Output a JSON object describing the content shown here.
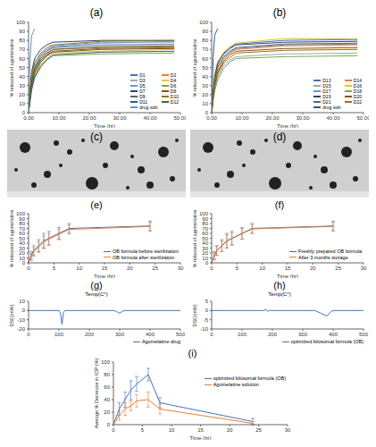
{
  "chart_data": [
    {
      "type": "line",
      "title": "(a)",
      "x_label": "Time (hr)",
      "y_label": "% released of agomelatine",
      "x": [
        0,
        0.5,
        1,
        2,
        4,
        6,
        8,
        24,
        48
      ],
      "xlim": [
        0,
        50
      ],
      "xticks": [
        {
          "value": 0,
          "label": "0.00"
        },
        {
          "value": 10,
          "label": "10.00"
        },
        {
          "value": 20,
          "label": "20.00"
        },
        {
          "value": 30,
          "label": "30.00"
        },
        {
          "value": 40,
          "label": "40.00"
        },
        {
          "value": 50,
          "label": "50.00"
        }
      ],
      "ylim": [
        0,
        100
      ],
      "yticks": [
        0,
        10,
        20,
        30,
        40,
        50,
        60,
        70,
        80,
        90,
        100
      ],
      "legend": "lower right",
      "series": [
        {
          "name": "D1",
          "color": "#4472c4",
          "values": [
            0,
            20,
            35,
            50,
            62,
            68,
            72,
            75,
            76
          ]
        },
        {
          "name": "D2",
          "color": "#ed7d31",
          "values": [
            0,
            15,
            28,
            45,
            58,
            65,
            70,
            72,
            73
          ]
        },
        {
          "name": "D3",
          "color": "#a5a5a5",
          "values": [
            0,
            25,
            40,
            55,
            65,
            70,
            74,
            78,
            78
          ]
        },
        {
          "name": "D4",
          "color": "#ffc000",
          "values": [
            0,
            18,
            30,
            42,
            55,
            62,
            66,
            68,
            70
          ]
        },
        {
          "name": "D5",
          "color": "#5b9bd5",
          "values": [
            0,
            22,
            38,
            52,
            63,
            69,
            73,
            77,
            79
          ]
        },
        {
          "name": "D6",
          "color": "#70ad47",
          "values": [
            0,
            12,
            25,
            38,
            50,
            58,
            63,
            65,
            66
          ]
        },
        {
          "name": "D7",
          "color": "#264478",
          "values": [
            0,
            28,
            45,
            60,
            70,
            75,
            78,
            80,
            80
          ]
        },
        {
          "name": "D8",
          "color": "#9e480e",
          "values": [
            0,
            16,
            30,
            44,
            56,
            63,
            67,
            70,
            71
          ]
        },
        {
          "name": "D9",
          "color": "#636363",
          "values": [
            0,
            20,
            33,
            47,
            58,
            64,
            68,
            71,
            72
          ]
        },
        {
          "name": "D10",
          "color": "#997300",
          "values": [
            0,
            24,
            40,
            55,
            66,
            72,
            75,
            79,
            80
          ]
        },
        {
          "name": "D11",
          "color": "#255e91",
          "values": [
            0,
            14,
            26,
            40,
            52,
            59,
            64,
            67,
            68
          ]
        },
        {
          "name": "D12",
          "color": "#43682b",
          "values": [
            0,
            19,
            34,
            49,
            60,
            66,
            70,
            73,
            74
          ]
        },
        {
          "name": "drug soln",
          "color": "#698ed0",
          "values": [
            0,
            60,
            85,
            93,
            null,
            null,
            null,
            null,
            null
          ]
        }
      ]
    },
    {
      "type": "line",
      "title": "(b)",
      "x_label": "Time (hr)",
      "y_label": "% released of agomelatine",
      "x": [
        0,
        0.5,
        1,
        2,
        4,
        6,
        8,
        24,
        48
      ],
      "xlim": [
        0,
        50
      ],
      "xticks": [
        {
          "value": 0,
          "label": "0.00"
        },
        {
          "value": 10,
          "label": "10.00"
        },
        {
          "value": 20,
          "label": "20.00"
        },
        {
          "value": 30,
          "label": "30.00"
        },
        {
          "value": 40,
          "label": "40.00"
        },
        {
          "value": 50,
          "label": "50.00"
        }
      ],
      "ylim": [
        0,
        100
      ],
      "yticks": [
        0,
        10,
        20,
        30,
        40,
        50,
        60,
        70,
        80,
        90,
        100
      ],
      "legend": "lower right",
      "series": [
        {
          "name": "D13",
          "color": "#4472c4",
          "values": [
            0,
            22,
            38,
            54,
            66,
            72,
            76,
            80,
            81
          ]
        },
        {
          "name": "D14",
          "color": "#ed7d31",
          "values": [
            0,
            18,
            32,
            47,
            59,
            66,
            70,
            74,
            75
          ]
        },
        {
          "name": "D15",
          "color": "#a5a5a5",
          "values": [
            0,
            15,
            27,
            40,
            52,
            58,
            62,
            65,
            66
          ]
        },
        {
          "name": "D16",
          "color": "#ffc000",
          "values": [
            0,
            26,
            42,
            57,
            67,
            73,
            77,
            82,
            82
          ]
        },
        {
          "name": "D17",
          "color": "#5b9bd5",
          "values": [
            0,
            20,
            35,
            50,
            61,
            67,
            71,
            75,
            76
          ]
        },
        {
          "name": "D18",
          "color": "#70ad47",
          "values": [
            0,
            13,
            24,
            37,
            49,
            56,
            60,
            62,
            63
          ]
        },
        {
          "name": "D19",
          "color": "#264478",
          "values": [
            0,
            24,
            40,
            55,
            65,
            71,
            75,
            78,
            79
          ]
        },
        {
          "name": "D20",
          "color": "#9e480e",
          "values": [
            0,
            17,
            30,
            45,
            57,
            64,
            68,
            71,
            72
          ]
        },
        {
          "name": "D21",
          "color": "#636363",
          "values": [
            0,
            21,
            36,
            51,
            62,
            68,
            72,
            76,
            77
          ]
        },
        {
          "name": "D22",
          "color": "#997300",
          "values": [
            0,
            16,
            29,
            43,
            55,
            61,
            66,
            69,
            70
          ]
        },
        {
          "name": "drug soln",
          "color": "#255e91",
          "values": [
            0,
            62,
            86,
            93,
            null,
            null,
            null,
            null,
            null
          ]
        }
      ]
    },
    {
      "type": "line",
      "title": "(e)",
      "x_label": "Time (hr)",
      "y_label": "% released of agomelatine",
      "x": [
        0,
        0.5,
        1,
        2,
        3,
        4,
        6,
        8,
        24
      ],
      "xlim": [
        0,
        30
      ],
      "xticks": [
        0,
        5,
        10,
        15,
        20,
        25,
        30
      ],
      "ylim": [
        0,
        100
      ],
      "yticks": [
        0,
        10,
        20,
        30,
        40,
        50,
        60,
        70,
        80,
        90,
        100
      ],
      "legend": "lower right",
      "series": [
        {
          "name": "OB formula before sterilization",
          "color": "#4472c4",
          "values": [
            0,
            15,
            25,
            35,
            45,
            50,
            60,
            70,
            75
          ],
          "errors": [
            0,
            8,
            10,
            12,
            15,
            14,
            12,
            10,
            10
          ]
        },
        {
          "name": "OB formula after sterilization",
          "color": "#ed7d31",
          "values": [
            0,
            12,
            22,
            32,
            42,
            48,
            58,
            68,
            74
          ],
          "errors": [
            0,
            7,
            9,
            11,
            13,
            12,
            11,
            9,
            9
          ]
        }
      ]
    },
    {
      "type": "line",
      "title": "(f)",
      "x_label": "Time (hr)",
      "y_label": "% released of agomelatine",
      "x": [
        0,
        0.5,
        1,
        2,
        3,
        4,
        6,
        8,
        24
      ],
      "xlim": [
        0,
        30
      ],
      "xticks": [
        0,
        5,
        10,
        15,
        20,
        25,
        30
      ],
      "ylim": [
        0,
        100
      ],
      "yticks": [
        0,
        10,
        20,
        30,
        40,
        50,
        60,
        70,
        80,
        90,
        100
      ],
      "legend": "lower right",
      "series": [
        {
          "name": "Freshly prepared OB formula",
          "color": "#4472c4",
          "values": [
            0,
            15,
            25,
            35,
            45,
            50,
            60,
            70,
            75
          ],
          "errors": [
            0,
            8,
            10,
            12,
            15,
            14,
            12,
            10,
            10
          ]
        },
        {
          "name": "After 3 months storage",
          "color": "#ed7d31",
          "values": [
            0,
            13,
            24,
            34,
            44,
            49,
            59,
            69,
            74
          ],
          "errors": [
            0,
            7,
            9,
            11,
            13,
            12,
            11,
            9,
            9
          ]
        }
      ]
    },
    {
      "type": "line",
      "title": "(g)",
      "x_label": "Temp(C°)",
      "y_label": "DSC(mW)",
      "x": [
        0,
        50,
        100,
        105,
        110,
        115,
        120,
        280,
        290,
        300,
        310,
        320,
        500
      ],
      "xlim": [
        0,
        500
      ],
      "xticks": [
        0,
        100,
        200,
        300,
        400,
        500
      ],
      "ylim": [
        -20,
        10
      ],
      "yticks": [
        -20,
        -10,
        0,
        10
      ],
      "legend": "below",
      "series": [
        {
          "name": "Agomelatine drug",
          "color": "#4472c4",
          "values": [
            0,
            0,
            0,
            -3,
            -15,
            -2,
            0,
            0,
            -1,
            -3,
            -0.5,
            0,
            0
          ]
        }
      ]
    },
    {
      "type": "line",
      "title": "(h)",
      "x_label": "Temp(C°)",
      "y_label": "DSC(mW)",
      "x": [
        0,
        170,
        180,
        185,
        190,
        340,
        360,
        380,
        390,
        400,
        500
      ],
      "xlim": [
        0,
        500
      ],
      "xticks": [
        0,
        100,
        200,
        300,
        400,
        500
      ],
      "ylim": [
        -10,
        5
      ],
      "yticks": [
        -10,
        -5,
        0,
        5
      ],
      "legend": "below",
      "series": [
        {
          "name": "optimized bilosomal formula (OB)",
          "color": "#4472c4",
          "values": [
            0,
            0,
            0.5,
            -0.5,
            0,
            0,
            -1.5,
            -3,
            -1,
            0,
            0
          ]
        }
      ]
    },
    {
      "type": "line",
      "title": "(i)",
      "x_label": "Time (hr)",
      "y_label": "Average % Decrease in IOP (%)",
      "x": [
        0,
        1,
        2,
        3,
        4,
        6,
        8,
        24
      ],
      "xlim": [
        0,
        30
      ],
      "xticks": [
        0,
        5,
        10,
        15,
        20,
        25,
        30
      ],
      "ylim": [
        0,
        100
      ],
      "yticks": [
        0,
        20,
        40,
        60,
        80,
        100
      ],
      "legend": "right",
      "series": [
        {
          "name": "optimized bilosomal formula (OB)",
          "color": "#4472c4",
          "values": [
            0,
            25,
            40,
            55,
            65,
            80,
            35,
            5
          ],
          "errors": [
            0,
            10,
            12,
            15,
            12,
            10,
            8,
            5
          ]
        },
        {
          "name": "Agomelatine solution",
          "color": "#ed7d31",
          "values": [
            0,
            15,
            25,
            30,
            38,
            40,
            25,
            2
          ],
          "errors": [
            0,
            8,
            10,
            8,
            10,
            12,
            8,
            3
          ]
        }
      ]
    }
  ],
  "images": [
    {
      "label": "(c)"
    },
    {
      "label": "(d)"
    }
  ]
}
